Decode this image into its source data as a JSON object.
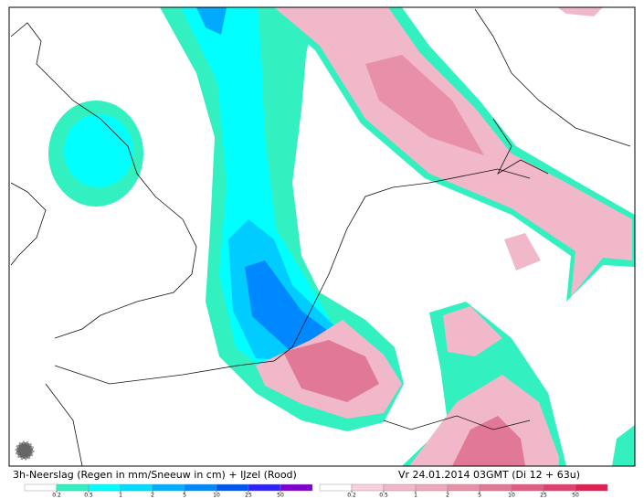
{
  "caption": "3h-Neerslag (Regen in mm/Sneeuw in cm) + IJzel (Rood)",
  "valid_time": "Vr 24.01.2014 03GMT (Di 12 + 63u)",
  "legends": [
    {
      "ticks": [
        0.2,
        0.5,
        1,
        2,
        5,
        10,
        25,
        50
      ],
      "colors": [
        "#ffffff",
        "#33f0c0",
        "#00ffff",
        "#00ddff",
        "#00b0ff",
        "#0088ff",
        "#0055ee",
        "#3020ff",
        "#8000d0"
      ]
    },
    {
      "ticks": [
        0.2,
        0.5,
        1,
        2,
        5,
        10,
        25,
        50
      ],
      "colors": [
        "#ffffff",
        "#f8d0dc",
        "#f0b8c8",
        "#eea8bc",
        "#e890a8",
        "#e07896",
        "#e05c80",
        "#e04070",
        "#e02050"
      ]
    }
  ]
}
